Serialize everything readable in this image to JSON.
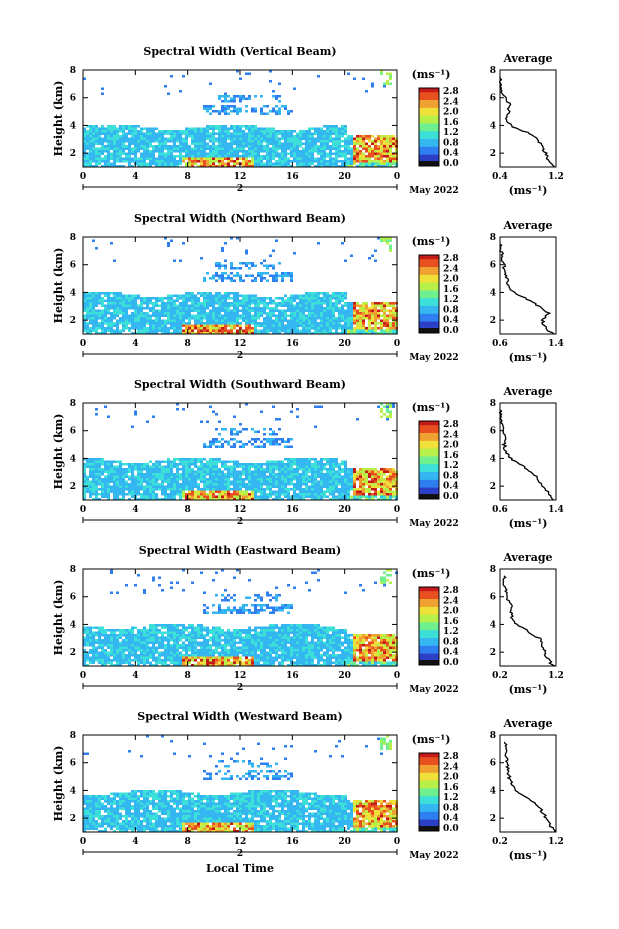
{
  "global": {
    "xlabel": "Local Time",
    "date_label": "May 2022",
    "colorbar_unit": "(ms⁻¹)",
    "avg_title": "Average",
    "avg_xunit": "(ms⁻¹)",
    "height_label": "Height (km)"
  },
  "colors": {
    "cmap": [
      "#1a1a6e",
      "#2b3fc7",
      "#2f7ff0",
      "#34b6f0",
      "#3ce0d8",
      "#6ef08f",
      "#b6f048",
      "#f0e03a",
      "#f0a030",
      "#e85020",
      "#c41a1a"
    ]
  },
  "chart_data": [
    {
      "type": "heatmap",
      "title": "Spectral Width (Vertical Beam)",
      "xlabel": "",
      "ylabel": "Height (km)",
      "xlim": [
        0,
        24
      ],
      "ylim": [
        1,
        8
      ],
      "x_ticks": [
        "0",
        "4",
        "8",
        "12",
        "16",
        "20",
        "0"
      ],
      "x_day_tick": "2",
      "y_ticks": [
        "2",
        "4",
        "6",
        "8"
      ],
      "colorbar": {
        "min": 0,
        "max": 2.8,
        "ticks": [
          "2.8",
          "2.4",
          "2.0",
          "1.6",
          "1.2",
          "0.8",
          "0.4",
          "0.0"
        ]
      },
      "profile": {
        "title": "Average",
        "xlim": [
          0.4,
          1.2
        ],
        "x_ticks": [
          "0.4",
          "1.2"
        ],
        "y_ticks": [
          "2",
          "4",
          "6",
          "8"
        ],
        "heights": [
          1.0,
          1.5,
          2.0,
          2.5,
          3.0,
          3.5,
          4.0,
          4.5,
          5.0,
          5.5,
          6.0,
          6.5,
          7.0,
          7.5
        ],
        "values": [
          1.18,
          1.08,
          1.05,
          1.0,
          0.95,
          0.78,
          0.55,
          0.48,
          0.52,
          0.55,
          0.47,
          0.43,
          0.42,
          0.4
        ]
      }
    },
    {
      "type": "heatmap",
      "title": "Spectral Width (Northward Beam)",
      "xlabel": "",
      "ylabel": "Height (km)",
      "xlim": [
        0,
        24
      ],
      "ylim": [
        1,
        8
      ],
      "x_ticks": [
        "0",
        "4",
        "8",
        "12",
        "16",
        "20",
        "0"
      ],
      "x_day_tick": "2",
      "y_ticks": [
        "2",
        "4",
        "6",
        "8"
      ],
      "colorbar": {
        "min": 0,
        "max": 2.8,
        "ticks": [
          "2.8",
          "2.4",
          "2.0",
          "1.6",
          "1.2",
          "0.8",
          "0.4",
          "0.0"
        ]
      },
      "profile": {
        "title": "Average",
        "xlim": [
          0.6,
          1.4
        ],
        "x_ticks": [
          "0.6",
          "1.4"
        ],
        "y_ticks": [
          "2",
          "4",
          "6",
          "8"
        ],
        "heights": [
          1.0,
          1.5,
          2.0,
          2.5,
          3.0,
          3.5,
          4.0,
          4.5,
          5.0,
          5.5,
          6.0,
          6.5,
          7.0,
          7.5
        ],
        "values": [
          1.35,
          1.25,
          1.2,
          1.3,
          1.15,
          1.0,
          0.8,
          0.72,
          0.7,
          0.68,
          0.65,
          0.63,
          0.62,
          0.6
        ]
      }
    },
    {
      "type": "heatmap",
      "title": "Spectral Width (Southward Beam)",
      "xlabel": "",
      "ylabel": "Height (km)",
      "xlim": [
        0,
        24
      ],
      "ylim": [
        1,
        8
      ],
      "x_ticks": [
        "0",
        "4",
        "8",
        "12",
        "16",
        "20",
        "0"
      ],
      "x_day_tick": "2",
      "y_ticks": [
        "2",
        "4",
        "6",
        "8"
      ],
      "colorbar": {
        "min": 0,
        "max": 2.8,
        "ticks": [
          "2.8",
          "2.4",
          "2.0",
          "1.6",
          "1.2",
          "0.8",
          "0.4",
          "0.0"
        ]
      },
      "profile": {
        "title": "Average",
        "xlim": [
          0.6,
          1.4
        ],
        "x_ticks": [
          "0.6",
          "1.4"
        ],
        "y_ticks": [
          "2",
          "4",
          "6",
          "8"
        ],
        "heights": [
          1.0,
          1.5,
          2.0,
          2.5,
          3.0,
          3.5,
          4.0,
          4.5,
          5.0,
          5.5,
          6.0,
          6.5,
          7.0,
          7.5
        ],
        "values": [
          1.38,
          1.3,
          1.22,
          1.15,
          1.05,
          0.92,
          0.75,
          0.68,
          0.66,
          0.7,
          0.64,
          0.62,
          0.62,
          0.61
        ]
      }
    },
    {
      "type": "heatmap",
      "title": "Spectral Width (Eastward Beam)",
      "xlabel": "",
      "ylabel": "Height (km)",
      "xlim": [
        0,
        24
      ],
      "ylim": [
        1,
        8
      ],
      "x_ticks": [
        "0",
        "4",
        "8",
        "12",
        "16",
        "20",
        "0"
      ],
      "x_day_tick": "2",
      "y_ticks": [
        "2",
        "4",
        "6",
        "8"
      ],
      "colorbar": {
        "min": 0,
        "max": 2.8,
        "ticks": [
          "2.8",
          "2.4",
          "2.0",
          "1.6",
          "1.2",
          "0.8",
          "0.4",
          "0.0"
        ]
      },
      "profile": {
        "title": "Average",
        "xlim": [
          0.2,
          1.2
        ],
        "x_ticks": [
          "0.2",
          "1.2"
        ],
        "y_ticks": [
          "2",
          "4",
          "6",
          "8"
        ],
        "heights": [
          1.0,
          1.5,
          2.0,
          2.5,
          3.0,
          3.5,
          4.0,
          4.5,
          5.0,
          5.5,
          6.0,
          6.5,
          7.0,
          7.5
        ],
        "values": [
          1.15,
          1.05,
          1.0,
          0.95,
          0.9,
          0.7,
          0.5,
          0.42,
          0.4,
          0.38,
          0.33,
          0.3,
          0.28,
          0.27
        ]
      }
    },
    {
      "type": "heatmap",
      "title": "Spectral Width (Westward Beam)",
      "xlabel": "Local Time",
      "ylabel": "Height (km)",
      "xlim": [
        0,
        24
      ],
      "ylim": [
        1,
        8
      ],
      "x_ticks": [
        "0",
        "4",
        "8",
        "12",
        "16",
        "20",
        "0"
      ],
      "x_day_tick": "2",
      "y_ticks": [
        "2",
        "4",
        "6",
        "8"
      ],
      "colorbar": {
        "min": 0,
        "max": 2.8,
        "ticks": [
          "2.8",
          "2.4",
          "2.0",
          "1.6",
          "1.2",
          "0.8",
          "0.4",
          "0.0"
        ]
      },
      "profile": {
        "title": "Average",
        "xlim": [
          0.2,
          1.2
        ],
        "x_ticks": [
          "0.2",
          "1.2"
        ],
        "y_ticks": [
          "2",
          "4",
          "6",
          "8"
        ],
        "heights": [
          1.0,
          1.5,
          2.0,
          2.5,
          3.0,
          3.5,
          4.0,
          4.5,
          5.0,
          5.5,
          6.0,
          6.5,
          7.0,
          7.5
        ],
        "values": [
          1.18,
          1.1,
          1.02,
          0.95,
          0.85,
          0.68,
          0.45,
          0.4,
          0.36,
          0.35,
          0.32,
          0.3,
          0.3,
          0.28
        ]
      }
    }
  ]
}
